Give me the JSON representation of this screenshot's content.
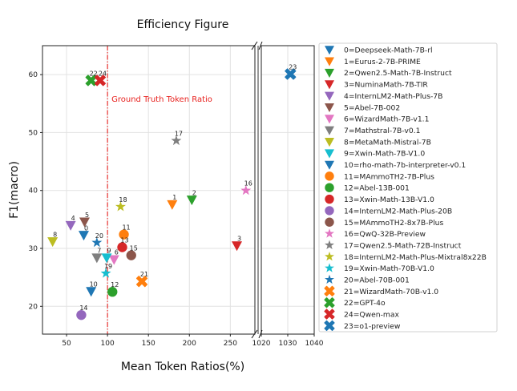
{
  "chart_data": {
    "type": "scatter",
    "title": "Efficiency Figure",
    "xlabel": "Mean Token Ratios(%)",
    "ylabel": "F1(macro)",
    "broken_x_axis": true,
    "xlim_left": [
      20.6,
      280
    ],
    "xlim_right": [
      1020,
      1040
    ],
    "ylim": [
      15.2,
      65
    ],
    "xticks_left": [
      50,
      100,
      150,
      200,
      250
    ],
    "xticks_right": [
      1020,
      1030,
      1040
    ],
    "yticks": [
      20,
      30,
      40,
      50,
      60
    ],
    "grid": true,
    "reference_line": {
      "x": 100,
      "label": "Ground Truth Token Ratio",
      "color": "#e8221f",
      "style": "dash-dot"
    },
    "legend_position": "right-outside",
    "points": [
      {
        "id": "0",
        "name": "Deepseek-Math-7B-rl",
        "x": 71,
        "y": 32.3,
        "marker": "triangle-down",
        "color": "#1f77b4"
      },
      {
        "id": "1",
        "name": "Eurus-2-7B-PRIME",
        "x": 179,
        "y": 37.6,
        "marker": "triangle-down",
        "color": "#ff7f0e"
      },
      {
        "id": "2",
        "name": "Qwen2.5-Math-7B-Instruct",
        "x": 203,
        "y": 38.4,
        "marker": "triangle-down",
        "color": "#2ca02c"
      },
      {
        "id": "3",
        "name": "NuminaMath-7B-TIR",
        "x": 258,
        "y": 30.5,
        "marker": "triangle-down",
        "color": "#d62728"
      },
      {
        "id": "4",
        "name": "InternLM2-Math-Plus-7B",
        "x": 55,
        "y": 34.0,
        "marker": "triangle-down",
        "color": "#9467bd"
      },
      {
        "id": "5",
        "name": "Abel-7B-002",
        "x": 72,
        "y": 34.6,
        "marker": "triangle-down",
        "color": "#8c564b"
      },
      {
        "id": "6",
        "name": "WizardMath-7B-v1.1",
        "x": 108,
        "y": 28.1,
        "marker": "triangle-down",
        "color": "#e377c2"
      },
      {
        "id": "7",
        "name": "Mathstral-7B-v0.1",
        "x": 87,
        "y": 28.4,
        "marker": "triangle-down",
        "color": "#7f7f7f"
      },
      {
        "id": "8",
        "name": "MetaMath-Mistral-7B",
        "x": 33,
        "y": 31.2,
        "marker": "triangle-down",
        "color": "#bcbd22"
      },
      {
        "id": "9",
        "name": "Xwin-Math-7B-V1.0",
        "x": 99,
        "y": 28.4,
        "marker": "triangle-down",
        "color": "#17becf"
      },
      {
        "id": "10",
        "name": "rho-math-7b-interpreter-v0.1",
        "x": 80,
        "y": 22.6,
        "marker": "triangle-down",
        "color": "#1f77b4"
      },
      {
        "id": "11",
        "name": "MAmmoTH2-7B-Plus",
        "x": 120,
        "y": 32.4,
        "marker": "circle",
        "color": "#ff7f0e"
      },
      {
        "id": "12",
        "name": "Abel-13B-001",
        "x": 106,
        "y": 22.5,
        "marker": "circle",
        "color": "#2ca02c"
      },
      {
        "id": "13",
        "name": "Xwin-Math-13B-V1.0",
        "x": 118,
        "y": 30.2,
        "marker": "circle",
        "color": "#d62728"
      },
      {
        "id": "14",
        "name": "InternLM2-Math-Plus-20B",
        "x": 68,
        "y": 18.5,
        "marker": "circle",
        "color": "#9467bd"
      },
      {
        "id": "15",
        "name": "MAmmoTH2-8x7B-Plus",
        "x": 129,
        "y": 28.8,
        "marker": "circle",
        "color": "#8c564b"
      },
      {
        "id": "16",
        "name": "QwQ-32B-Preview",
        "x": 269,
        "y": 40.0,
        "marker": "star",
        "color": "#e377c2"
      },
      {
        "id": "17",
        "name": "Qwen2.5-Math-72B-Instruct",
        "x": 184,
        "y": 48.6,
        "marker": "star",
        "color": "#7f7f7f"
      },
      {
        "id": "18",
        "name": "InternLM2-Math-Plus-Mixtral8x22B",
        "x": 116,
        "y": 37.2,
        "marker": "star",
        "color": "#bcbd22"
      },
      {
        "id": "19",
        "name": "Xwin-Math-70B-V1.0",
        "x": 98,
        "y": 25.7,
        "marker": "star",
        "color": "#17becf"
      },
      {
        "id": "20",
        "name": "Abel-70B-001",
        "x": 87,
        "y": 31.0,
        "marker": "star",
        "color": "#1f77b4"
      },
      {
        "id": "21",
        "name": "WizardMath-70B-v1.0",
        "x": 142,
        "y": 24.3,
        "marker": "x-cross",
        "color": "#ff7f0e"
      },
      {
        "id": "22",
        "name": "GPT-4o",
        "x": 80,
        "y": 59.0,
        "marker": "x-cross",
        "color": "#2ca02c"
      },
      {
        "id": "24",
        "name": "Qwen-max",
        "x": 91,
        "y": 59.0,
        "marker": "x-cross",
        "color": "#d62728"
      },
      {
        "id": "23",
        "name": "o1-preview",
        "x": 1031,
        "y": 60.1,
        "marker": "x-cross",
        "color": "#1f77b4"
      }
    ]
  }
}
